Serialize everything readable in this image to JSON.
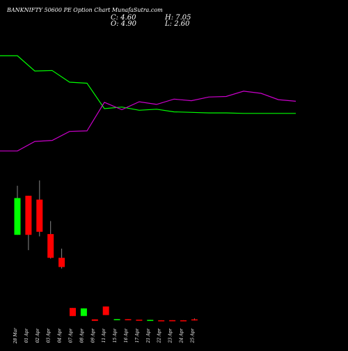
{
  "header": {
    "title": "BANKNIFTY 50600  PE Option  Chart MunafaSutra.com",
    "close_label": "C: 4.60",
    "open_label": "O: 4.90",
    "high_label": "H: 7.05",
    "low_label": "L: 2.60"
  },
  "colors": {
    "background": "#000000",
    "up": "#00ff00",
    "down": "#ff0000",
    "green_line": "#00ff00",
    "magenta_line": "#cc00cc",
    "text": "#ffffff",
    "wick": "#888888"
  },
  "chart_data": {
    "type": "candlestick",
    "categories": [
      "28 Mar",
      "01 Apr",
      "02 Apr",
      "03 Apr",
      "04 Apr",
      "07 Apr",
      "08 Apr",
      "09 Apr",
      "11 Apr",
      "15 Apr",
      "16 Apr",
      "17 Apr",
      "21 Apr",
      "22 Apr",
      "23 Apr",
      "24 Apr",
      "25 Apr"
    ],
    "candles": [
      {
        "open": 580,
        "close": 1060,
        "high": 1220,
        "low": 580,
        "color": "up"
      },
      {
        "open": 1090,
        "close": 580,
        "high": 1090,
        "low": 380,
        "color": "down"
      },
      {
        "open": 1040,
        "close": 620,
        "high": 1290,
        "low": 560,
        "color": "down"
      },
      {
        "open": 590,
        "close": 280,
        "high": 760,
        "low": 270,
        "color": "down"
      },
      {
        "open": 280,
        "close": 160,
        "high": 400,
        "low": 140,
        "color": "down"
      },
      {
        "open": 29,
        "close": 12,
        "high": 29,
        "low": 12,
        "color": "down"
      },
      {
        "open": 12,
        "close": 28,
        "high": 28,
        "low": 12,
        "color": "up"
      },
      {
        "open": 5,
        "close": 2,
        "high": 5,
        "low": 2,
        "color": "down"
      },
      {
        "open": 32,
        "close": 14,
        "high": 32,
        "low": 14,
        "color": "down"
      },
      {
        "open": 5.6,
        "close": 5.2,
        "high": 5.6,
        "low": 5.2,
        "color": "up"
      },
      {
        "open": 5.4,
        "close": 4.2,
        "high": 5.4,
        "low": 4.2,
        "color": "down"
      },
      {
        "open": 4.4,
        "close": 3.6,
        "high": 4.4,
        "low": 3.6,
        "color": "down"
      },
      {
        "open": 4.0,
        "close": 2.6,
        "high": 4.0,
        "low": 2.6,
        "color": "up"
      },
      {
        "open": 3.0,
        "close": 2.8,
        "high": 3.0,
        "low": 2.8,
        "color": "down"
      },
      {
        "open": 3.2,
        "close": 3.0,
        "high": 3.2,
        "low": 3.0,
        "color": "down"
      },
      {
        "open": 3.0,
        "close": 2.8,
        "high": 3.0,
        "low": 2.8,
        "color": "down"
      },
      {
        "open": 4.9,
        "close": 4.6,
        "high": 7.05,
        "low": 2.6,
        "color": "down"
      }
    ],
    "green_line": [
      1.0,
      1.0,
      0.71,
      0.72,
      0.5,
      0.48,
      0.0,
      0.03,
      -0.03,
      -0.01,
      -0.06,
      -0.07,
      -0.08,
      -0.08,
      -0.09,
      -0.09,
      -0.09
    ],
    "magenta_line": [
      -0.8,
      -0.8,
      -0.62,
      -0.6,
      -0.43,
      -0.42,
      0.12,
      -0.02,
      0.13,
      0.08,
      0.18,
      0.15,
      0.22,
      0.23,
      0.33,
      0.29,
      0.17,
      0.14
    ],
    "line_x_positions": [
      0,
      1,
      2,
      3,
      4,
      5,
      6,
      7,
      8,
      9,
      10,
      11,
      12,
      13,
      14,
      15,
      16
    ],
    "magenta_x_positions": [
      0,
      1,
      2,
      3,
      4,
      5,
      6,
      7,
      8,
      9,
      10,
      11,
      12,
      13,
      14,
      15,
      16,
      17
    ],
    "xlabel": "",
    "ylabel": "",
    "ylim_lines": [
      -1,
      1
    ],
    "ylim_candles": [
      0,
      1300
    ],
    "grid": false,
    "legend": "none"
  }
}
